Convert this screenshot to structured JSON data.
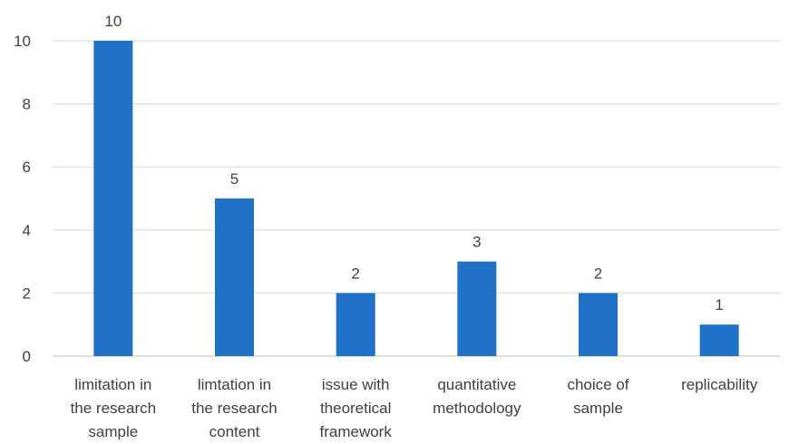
{
  "chart_data": {
    "type": "bar",
    "categories": [
      [
        "limitation in",
        "the research",
        "sample"
      ],
      [
        "limtation in",
        "the research",
        "content"
      ],
      [
        "issue with",
        "theoretical",
        "framework"
      ],
      [
        "quantitative",
        "methodology"
      ],
      [
        "choice of",
        "sample"
      ],
      [
        "replicability"
      ]
    ],
    "values": [
      10,
      5,
      2,
      3,
      2,
      1
    ],
    "data_labels": [
      "10",
      "5",
      "2",
      "3",
      "2",
      "1"
    ],
    "yticks": [
      0,
      2,
      4,
      6,
      8,
      10
    ],
    "ylim": [
      0,
      10
    ],
    "title": "",
    "xlabel": "",
    "ylabel": "",
    "grid": true,
    "legend": "none",
    "bar_color": "#1f72c8"
  }
}
